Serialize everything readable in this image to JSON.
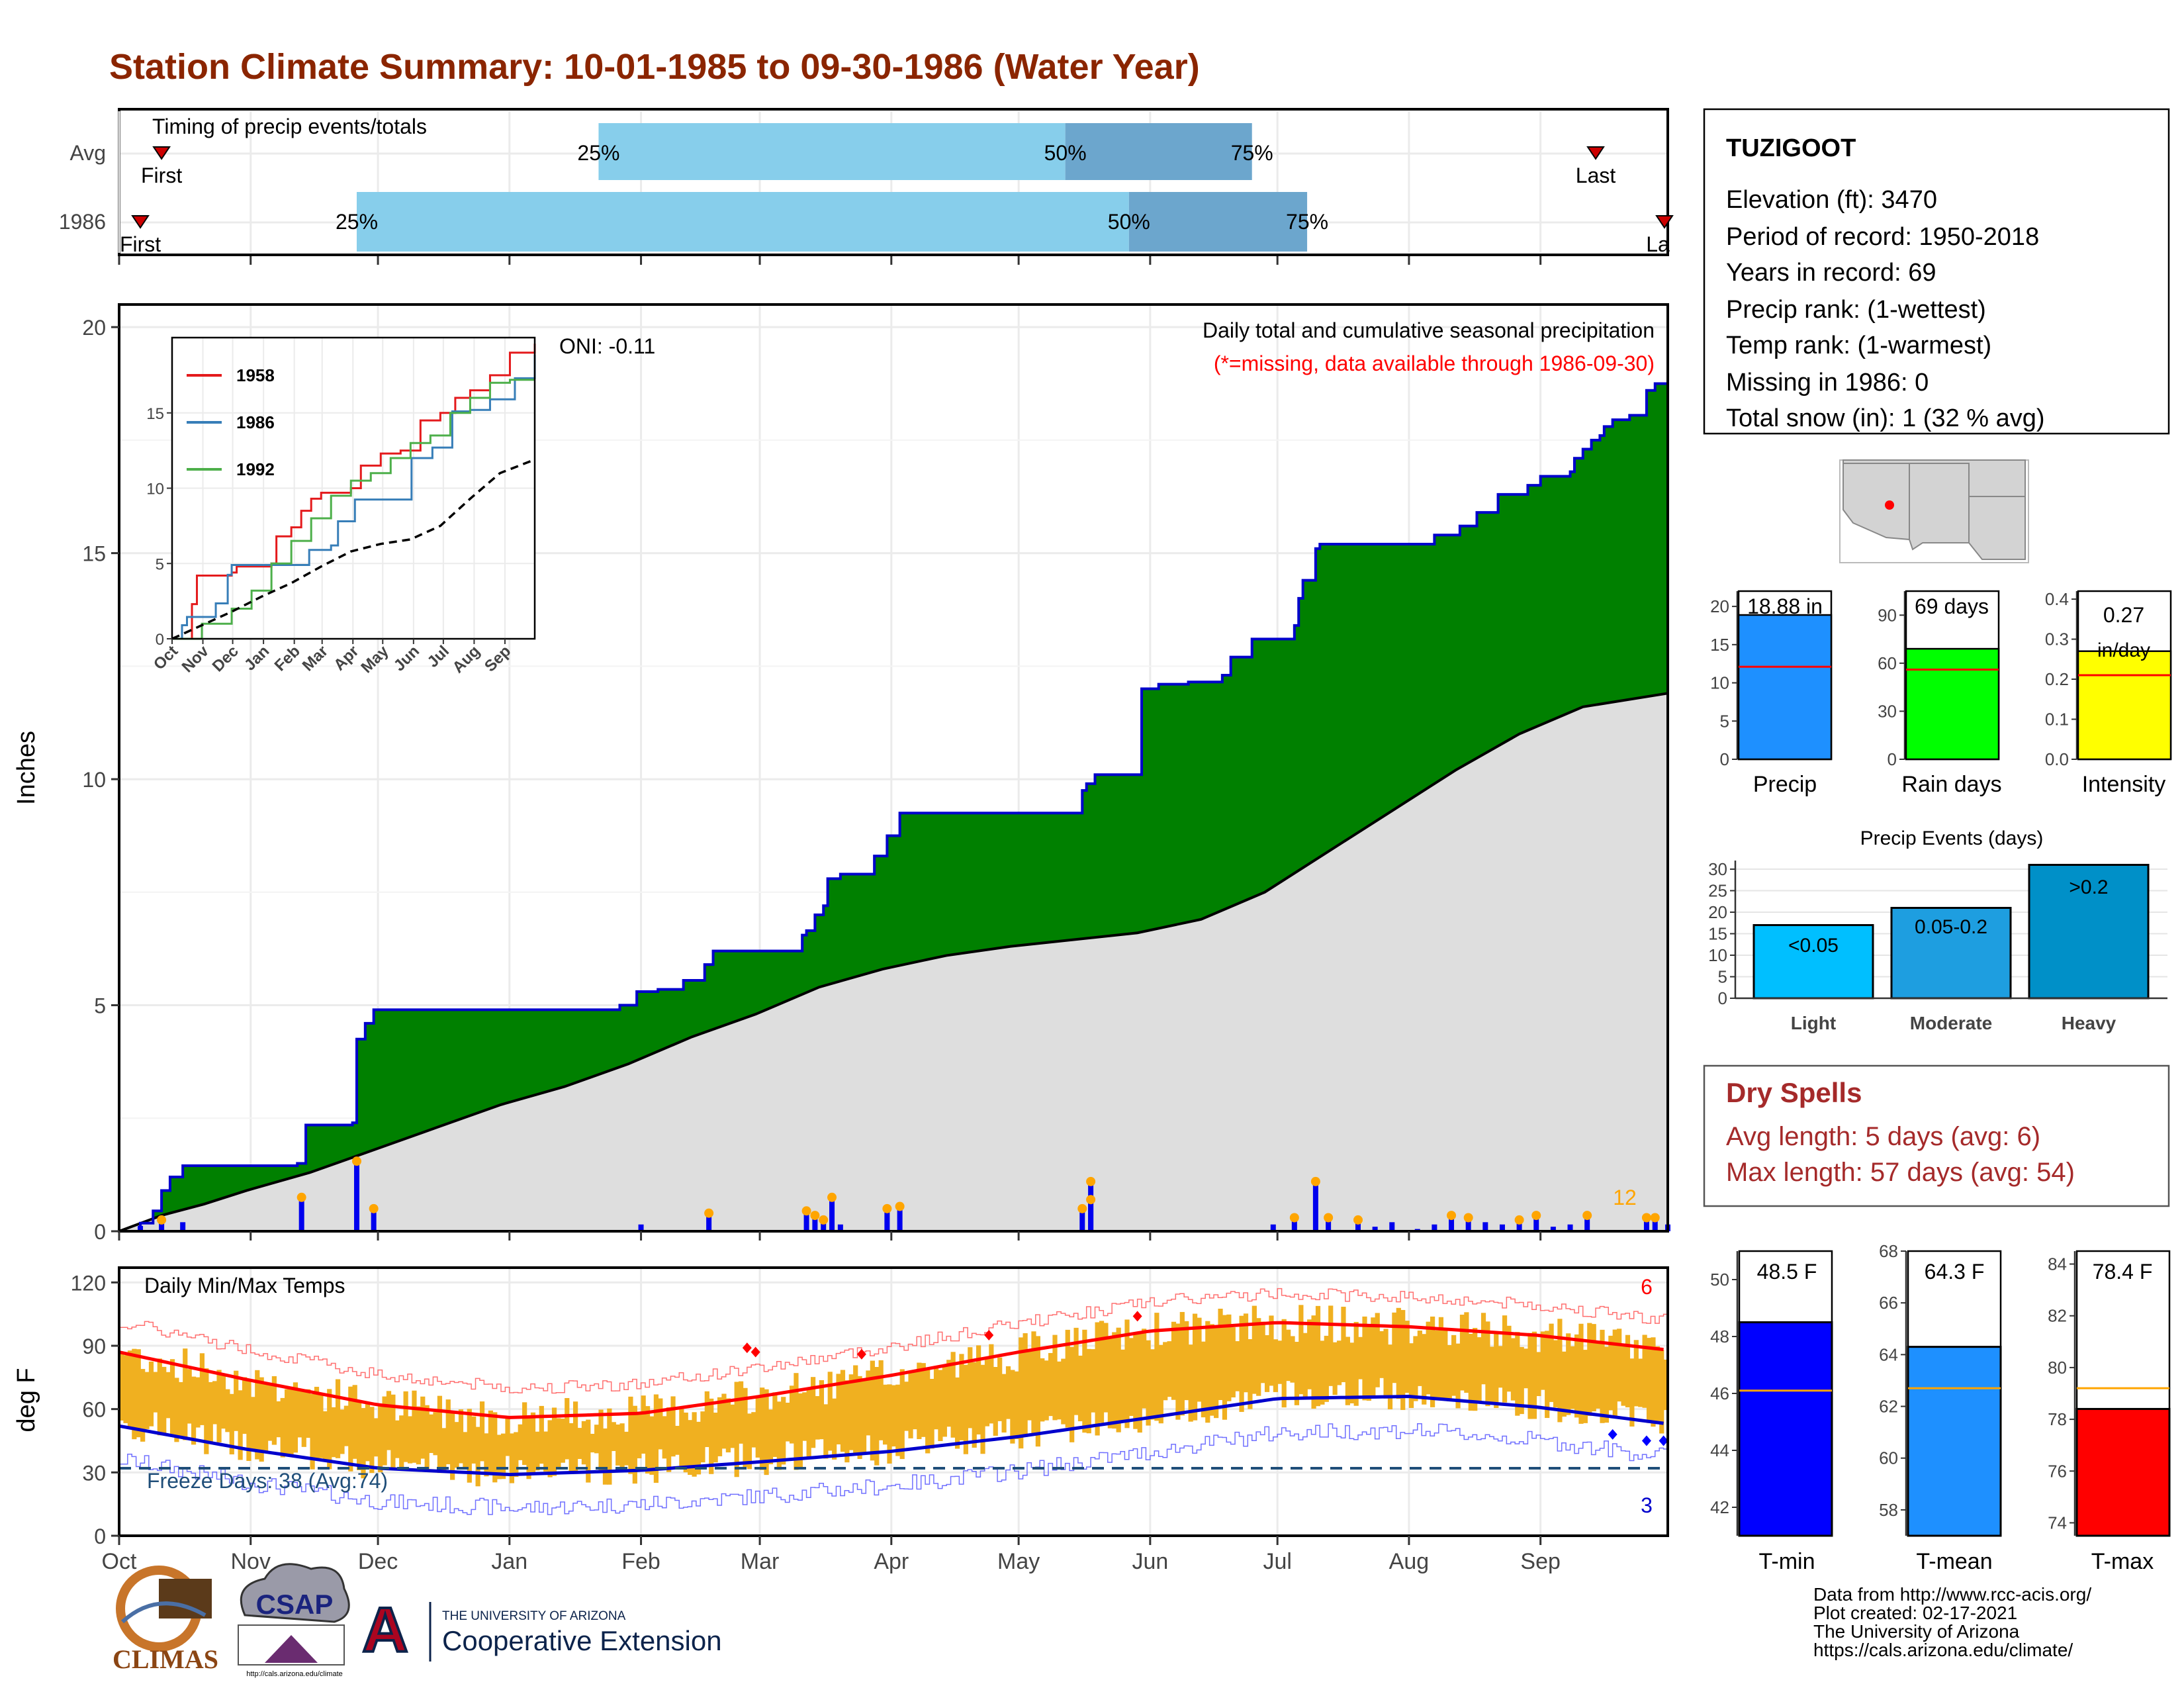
{
  "title": "Station Climate Summary: 10-01-1985 to 09-30-1986 (Water Year)",
  "timing": {
    "title": "Timing of precip events/totals",
    "rows": [
      {
        "label": "Avg",
        "first": "First",
        "last": "Last",
        "p25": "25%",
        "p50": "50%",
        "p75": "75%"
      },
      {
        "label": "1986",
        "first": "First",
        "last": "La",
        "p25": "25%",
        "p50": "50%",
        "p75": "75%"
      }
    ]
  },
  "main": {
    "annotation_title": "Daily total and cumulative seasonal precipitation",
    "annotation_missing": "(*=missing, data available through 1986-09-30)",
    "oni": "ONI: -0.11",
    "ylabel": "Inches",
    "yticks": [
      "0",
      "5",
      "10",
      "15",
      "20"
    ],
    "count_label": "12"
  },
  "inset": {
    "yticks": [
      "0",
      "5",
      "10",
      "15"
    ],
    "xticks": [
      "Oct",
      "Nov",
      "Dec",
      "Jan",
      "Feb",
      "Mar",
      "Apr",
      "May",
      "Jun",
      "Jul",
      "Aug",
      "Sep"
    ],
    "legend": [
      "1958",
      "1986",
      "1992"
    ]
  },
  "temps": {
    "title": "Daily Min/Max Temps",
    "ylabel": "deg F",
    "yticks": [
      "0",
      "30",
      "60",
      "90",
      "120"
    ],
    "freeze": "Freeze Days: 38 (Avg:74)",
    "hot_count": "6",
    "cold_count": "3"
  },
  "months": [
    "Oct",
    "Nov",
    "Dec",
    "Jan",
    "Feb",
    "Mar",
    "Apr",
    "May",
    "Jun",
    "Jul",
    "Aug",
    "Sep"
  ],
  "station": {
    "name": "TUZIGOOT",
    "lines": [
      "Elevation (ft): 3470",
      "Period of record: 1950-2018",
      "Years in record: 69",
      "Precip rank:  (1-wettest)",
      "Temp rank:  (1-warmest)",
      "Missing in 1986: 0",
      "Total snow (in): 1 (32 % avg)"
    ]
  },
  "mini_bars": [
    {
      "label": "Precip",
      "value_text": "18.88 in",
      "yticks": [
        "0",
        "5",
        "10",
        "15",
        "20"
      ]
    },
    {
      "label": "Rain days",
      "value_text": "69 days",
      "yticks": [
        "0",
        "30",
        "60",
        "90"
      ]
    },
    {
      "label": "Intensity",
      "value_text": "0.27",
      "value_unit": "in/day",
      "yticks": [
        "0.0",
        "0.1",
        "0.2",
        "0.3",
        "0.4"
      ]
    }
  ],
  "precip_events": {
    "title": "Precip Events (days)",
    "yticks": [
      "0",
      "5",
      "10",
      "15",
      "20",
      "25",
      "30"
    ],
    "bars": [
      {
        "name": "Light",
        "label": "<0.05"
      },
      {
        "name": "Moderate",
        "label": "0.05-0.2"
      },
      {
        "name": "Heavy",
        "label": ">0.2"
      }
    ]
  },
  "dry_spells": {
    "title": "Dry Spells",
    "avg": "Avg length: 5 days (avg: 6)",
    "max": "Max length: 57 days (avg: 54)"
  },
  "temp_bars": [
    {
      "label": "T-min",
      "value_text": "48.5 F",
      "yticks": [
        "42",
        "44",
        "46",
        "48",
        "50"
      ]
    },
    {
      "label": "T-mean",
      "value_text": "64.3 F",
      "yticks": [
        "58",
        "60",
        "62",
        "64",
        "66",
        "68"
      ]
    },
    {
      "label": "T-max",
      "value_text": "78.4 F",
      "yticks": [
        "74",
        "76",
        "78",
        "80",
        "82",
        "84"
      ]
    }
  ],
  "footer": {
    "lines": [
      "Data from http://www.rcc-acis.org/",
      "Plot created: 02-17-2021",
      "The University of Arizona",
      "https://cals.arizona.edu/climate/"
    ],
    "climas": "CLIMAS",
    "csap": "CSAP",
    "csap_url": "http://cals.arizona.edu/climate",
    "ua_small": "THE UNIVERSITY OF ARIZONA",
    "ua_big": "Cooperative Extension"
  },
  "colors": {
    "title": "#8b2500",
    "cumulative_fill": "#008000",
    "cumulative_line": "#0000cc",
    "avg_fill": "#dedede",
    "daily_bar": "#0000ee",
    "marker": "#ffa500",
    "temp_bar": "#f0b020",
    "tmax_avg": "#ff0000",
    "tmin_avg": "#0000cc",
    "light_bar": "#87ceeb",
    "dark_bar": "#6ca6cd"
  },
  "chart_data": [
    {
      "type": "bar",
      "name": "timing",
      "rows": [
        {
          "label": "Avg",
          "first_day": 10,
          "p25_day": 113,
          "p50_day": 223,
          "p75_day": 267,
          "last_day": 348
        },
        {
          "label": "1986",
          "first_day": 5,
          "p25_day": 56,
          "p50_day": 238,
          "p75_day": 280,
          "last_day": 365
        }
      ]
    },
    {
      "type": "area",
      "name": "cumulative_precip",
      "x_unit": "day of water year",
      "xlim": [
        0,
        365
      ],
      "ylim": [
        0,
        20.5
      ],
      "ylabel": "Inches",
      "cumulative_1986": [
        [
          0,
          0
        ],
        [
          5,
          0.18
        ],
        [
          8,
          0.45
        ],
        [
          10,
          0.9
        ],
        [
          12,
          1.2
        ],
        [
          15,
          1.45
        ],
        [
          40,
          1.45
        ],
        [
          42,
          1.5
        ],
        [
          44,
          2.35
        ],
        [
          55,
          2.4
        ],
        [
          56,
          4.25
        ],
        [
          58,
          4.6
        ],
        [
          60,
          4.9
        ],
        [
          100,
          4.9
        ],
        [
          118,
          5.0
        ],
        [
          122,
          5.3
        ],
        [
          127,
          5.35
        ],
        [
          133,
          5.55
        ],
        [
          138,
          5.9
        ],
        [
          140,
          6.2
        ],
        [
          160,
          6.2
        ],
        [
          161,
          6.55
        ],
        [
          162,
          6.65
        ],
        [
          164,
          7.0
        ],
        [
          166,
          7.2
        ],
        [
          167,
          7.8
        ],
        [
          170,
          7.9
        ],
        [
          178,
          8.3
        ],
        [
          181,
          8.75
        ],
        [
          184,
          9.25
        ],
        [
          225,
          9.25
        ],
        [
          227,
          9.75
        ],
        [
          228,
          9.9
        ],
        [
          230,
          10.1
        ],
        [
          240,
          10.1
        ],
        [
          241,
          12.0
        ],
        [
          245,
          12.1
        ],
        [
          252,
          12.15
        ],
        [
          260,
          12.3
        ],
        [
          262,
          12.7
        ],
        [
          267,
          13.1
        ],
        [
          277,
          13.4
        ],
        [
          278,
          14.0
        ],
        [
          279,
          14.4
        ],
        [
          282,
          15.1
        ],
        [
          283,
          15.2
        ],
        [
          300,
          15.2
        ],
        [
          310,
          15.4
        ],
        [
          316,
          15.6
        ],
        [
          320,
          15.9
        ],
        [
          325,
          16.3
        ],
        [
          332,
          16.5
        ],
        [
          335,
          16.7
        ],
        [
          342,
          16.8
        ],
        [
          343,
          17.1
        ],
        [
          345,
          17.3
        ],
        [
          347,
          17.5
        ],
        [
          349,
          17.6
        ],
        [
          350,
          17.8
        ],
        [
          352,
          17.95
        ],
        [
          356,
          18.05
        ],
        [
          360,
          18.6
        ],
        [
          362,
          18.75
        ],
        [
          365,
          18.88
        ]
      ],
      "average_cumulative": [
        [
          0,
          0
        ],
        [
          10,
          0.35
        ],
        [
          20,
          0.6
        ],
        [
          30,
          0.9
        ],
        [
          45,
          1.3
        ],
        [
          60,
          1.8
        ],
        [
          75,
          2.3
        ],
        [
          90,
          2.8
        ],
        [
          105,
          3.2
        ],
        [
          120,
          3.7
        ],
        [
          135,
          4.3
        ],
        [
          150,
          4.8
        ],
        [
          165,
          5.4
        ],
        [
          180,
          5.8
        ],
        [
          195,
          6.1
        ],
        [
          210,
          6.3
        ],
        [
          225,
          6.45
        ],
        [
          240,
          6.6
        ],
        [
          255,
          6.9
        ],
        [
          270,
          7.5
        ],
        [
          285,
          8.4
        ],
        [
          300,
          9.3
        ],
        [
          315,
          10.2
        ],
        [
          330,
          11.0
        ],
        [
          345,
          11.6
        ],
        [
          365,
          11.9
        ]
      ],
      "daily_bars": [
        [
          5,
          0.12
        ],
        [
          10,
          0.25
        ],
        [
          15,
          0.2
        ],
        [
          43,
          0.75
        ],
        [
          56,
          1.55
        ],
        [
          60,
          0.5
        ],
        [
          123,
          0.15
        ],
        [
          139,
          0.4
        ],
        [
          162,
          0.45
        ],
        [
          164,
          0.35
        ],
        [
          166,
          0.25
        ],
        [
          168,
          0.75
        ],
        [
          170,
          0.15
        ],
        [
          181,
          0.5
        ],
        [
          184,
          0.55
        ],
        [
          227,
          0.5
        ],
        [
          229,
          1.1
        ],
        [
          229,
          0.7
        ],
        [
          272,
          0.15
        ],
        [
          277,
          0.3
        ],
        [
          282,
          1.1
        ],
        [
          285,
          0.3
        ],
        [
          292,
          0.25
        ],
        [
          296,
          0.1
        ],
        [
          300,
          0.2
        ],
        [
          306,
          0.05
        ],
        [
          310,
          0.15
        ],
        [
          314,
          0.35
        ],
        [
          318,
          0.3
        ],
        [
          322,
          0.2
        ],
        [
          326,
          0.15
        ],
        [
          330,
          0.25
        ],
        [
          334,
          0.35
        ],
        [
          338,
          0.1
        ],
        [
          342,
          0.15
        ],
        [
          346,
          0.35
        ],
        [
          360,
          0.3
        ],
        [
          362,
          0.3
        ],
        [
          365,
          0.15
        ]
      ]
    },
    {
      "type": "line",
      "name": "inset_comparison",
      "xlim": [
        0,
        365
      ],
      "ylim": [
        0,
        20
      ],
      "series": [
        {
          "name": "1958",
          "values": [
            [
              0,
              0
            ],
            [
              20,
              2.3
            ],
            [
              25,
              4.2
            ],
            [
              60,
              4.4
            ],
            [
              65,
              4.8
            ],
            [
              100,
              5.0
            ],
            [
              105,
              6.8
            ],
            [
              120,
              7.4
            ],
            [
              130,
              8.5
            ],
            [
              140,
              9.3
            ],
            [
              150,
              9.7
            ],
            [
              180,
              10.0
            ],
            [
              190,
              11.5
            ],
            [
              210,
              12.3
            ],
            [
              230,
              12.5
            ],
            [
              250,
              14.5
            ],
            [
              270,
              15.0
            ],
            [
              285,
              16.0
            ],
            [
              300,
              16.5
            ],
            [
              320,
              17.5
            ],
            [
              340,
              19.0
            ],
            [
              365,
              19.6
            ]
          ]
        },
        {
          "name": "1986",
          "values": [
            [
              0,
              0
            ],
            [
              10,
              0.9
            ],
            [
              15,
              1.45
            ],
            [
              44,
              2.35
            ],
            [
              56,
              4.25
            ],
            [
              60,
              4.9
            ],
            [
              100,
              4.9
            ],
            [
              138,
              5.9
            ],
            [
              160,
              6.2
            ],
            [
              167,
              7.8
            ],
            [
              184,
              9.25
            ],
            [
              225,
              9.25
            ],
            [
              241,
              12.0
            ],
            [
              262,
              12.7
            ],
            [
              282,
              15.1
            ],
            [
              300,
              15.2
            ],
            [
              320,
              15.9
            ],
            [
              345,
              17.3
            ],
            [
              365,
              18.88
            ]
          ]
        },
        {
          "name": "1992",
          "values": [
            [
              0,
              0
            ],
            [
              30,
              1.0
            ],
            [
              60,
              2.0
            ],
            [
              80,
              3.2
            ],
            [
              100,
              5.0
            ],
            [
              120,
              6.5
            ],
            [
              140,
              8.0
            ],
            [
              160,
              9.5
            ],
            [
              180,
              10.5
            ],
            [
              200,
              11.0
            ],
            [
              220,
              12.0
            ],
            [
              240,
              13.0
            ],
            [
              260,
              13.5
            ],
            [
              280,
              15.0
            ],
            [
              300,
              16.0
            ],
            [
              320,
              17.0
            ],
            [
              340,
              17.2
            ],
            [
              365,
              17.2
            ]
          ]
        },
        {
          "name": "average",
          "values": [
            [
              0,
              0
            ],
            [
              30,
              0.9
            ],
            [
              60,
              1.8
            ],
            [
              90,
              2.8
            ],
            [
              120,
              3.7
            ],
            [
              150,
              4.8
            ],
            [
              180,
              5.8
            ],
            [
              210,
              6.3
            ],
            [
              240,
              6.6
            ],
            [
              270,
              7.5
            ],
            [
              300,
              9.3
            ],
            [
              330,
              11.0
            ],
            [
              365,
              11.9
            ]
          ]
        }
      ]
    },
    {
      "type": "bar",
      "name": "daily_temperatures",
      "ylim": [
        0,
        120
      ],
      "ylabel": "deg F",
      "avg_max_monthly": [
        [
          0,
          87
        ],
        [
          30,
          74
        ],
        [
          61,
          62
        ],
        [
          92,
          56
        ],
        [
          123,
          58
        ],
        [
          151,
          66
        ],
        [
          182,
          76
        ],
        [
          212,
          87
        ],
        [
          243,
          97
        ],
        [
          273,
          101
        ],
        [
          304,
          99
        ],
        [
          334,
          95
        ],
        [
          365,
          88
        ]
      ],
      "avg_min_monthly": [
        [
          0,
          52
        ],
        [
          30,
          41
        ],
        [
          61,
          32
        ],
        [
          92,
          29
        ],
        [
          123,
          31
        ],
        [
          151,
          35
        ],
        [
          182,
          40
        ],
        [
          212,
          47
        ],
        [
          243,
          56
        ],
        [
          273,
          65
        ],
        [
          304,
          66
        ],
        [
          334,
          61
        ],
        [
          365,
          53
        ]
      ],
      "freeze_line": 32
    },
    {
      "type": "bar",
      "name": "precip_total",
      "categories": [
        "Precip"
      ],
      "values": [
        18.88
      ],
      "average": 12.1,
      "ylim": [
        0,
        22
      ]
    },
    {
      "type": "bar",
      "name": "rain_days",
      "categories": [
        "Rain days"
      ],
      "values": [
        69
      ],
      "average": 56,
      "ylim": [
        0,
        105
      ]
    },
    {
      "type": "bar",
      "name": "intensity",
      "categories": [
        "Intensity"
      ],
      "values": [
        0.27
      ],
      "average": 0.21,
      "ylim": [
        0,
        0.42
      ]
    },
    {
      "type": "bar",
      "name": "precip_events",
      "categories": [
        "Light",
        "Moderate",
        "Heavy"
      ],
      "values": [
        17,
        21,
        31
      ],
      "ylim": [
        0,
        32
      ]
    },
    {
      "type": "bar",
      "name": "tmin",
      "categories": [
        "T-min"
      ],
      "values": [
        48.5
      ],
      "average": 46.1,
      "ylim": [
        41,
        51
      ]
    },
    {
      "type": "bar",
      "name": "tmean",
      "categories": [
        "T-mean"
      ],
      "values": [
        64.3
      ],
      "average": 62.7,
      "ylim": [
        57,
        68
      ]
    },
    {
      "type": "bar",
      "name": "tmax",
      "categories": [
        "T-max"
      ],
      "values": [
        78.4
      ],
      "average": 79.2,
      "ylim": [
        73.5,
        84.5
      ]
    }
  ]
}
